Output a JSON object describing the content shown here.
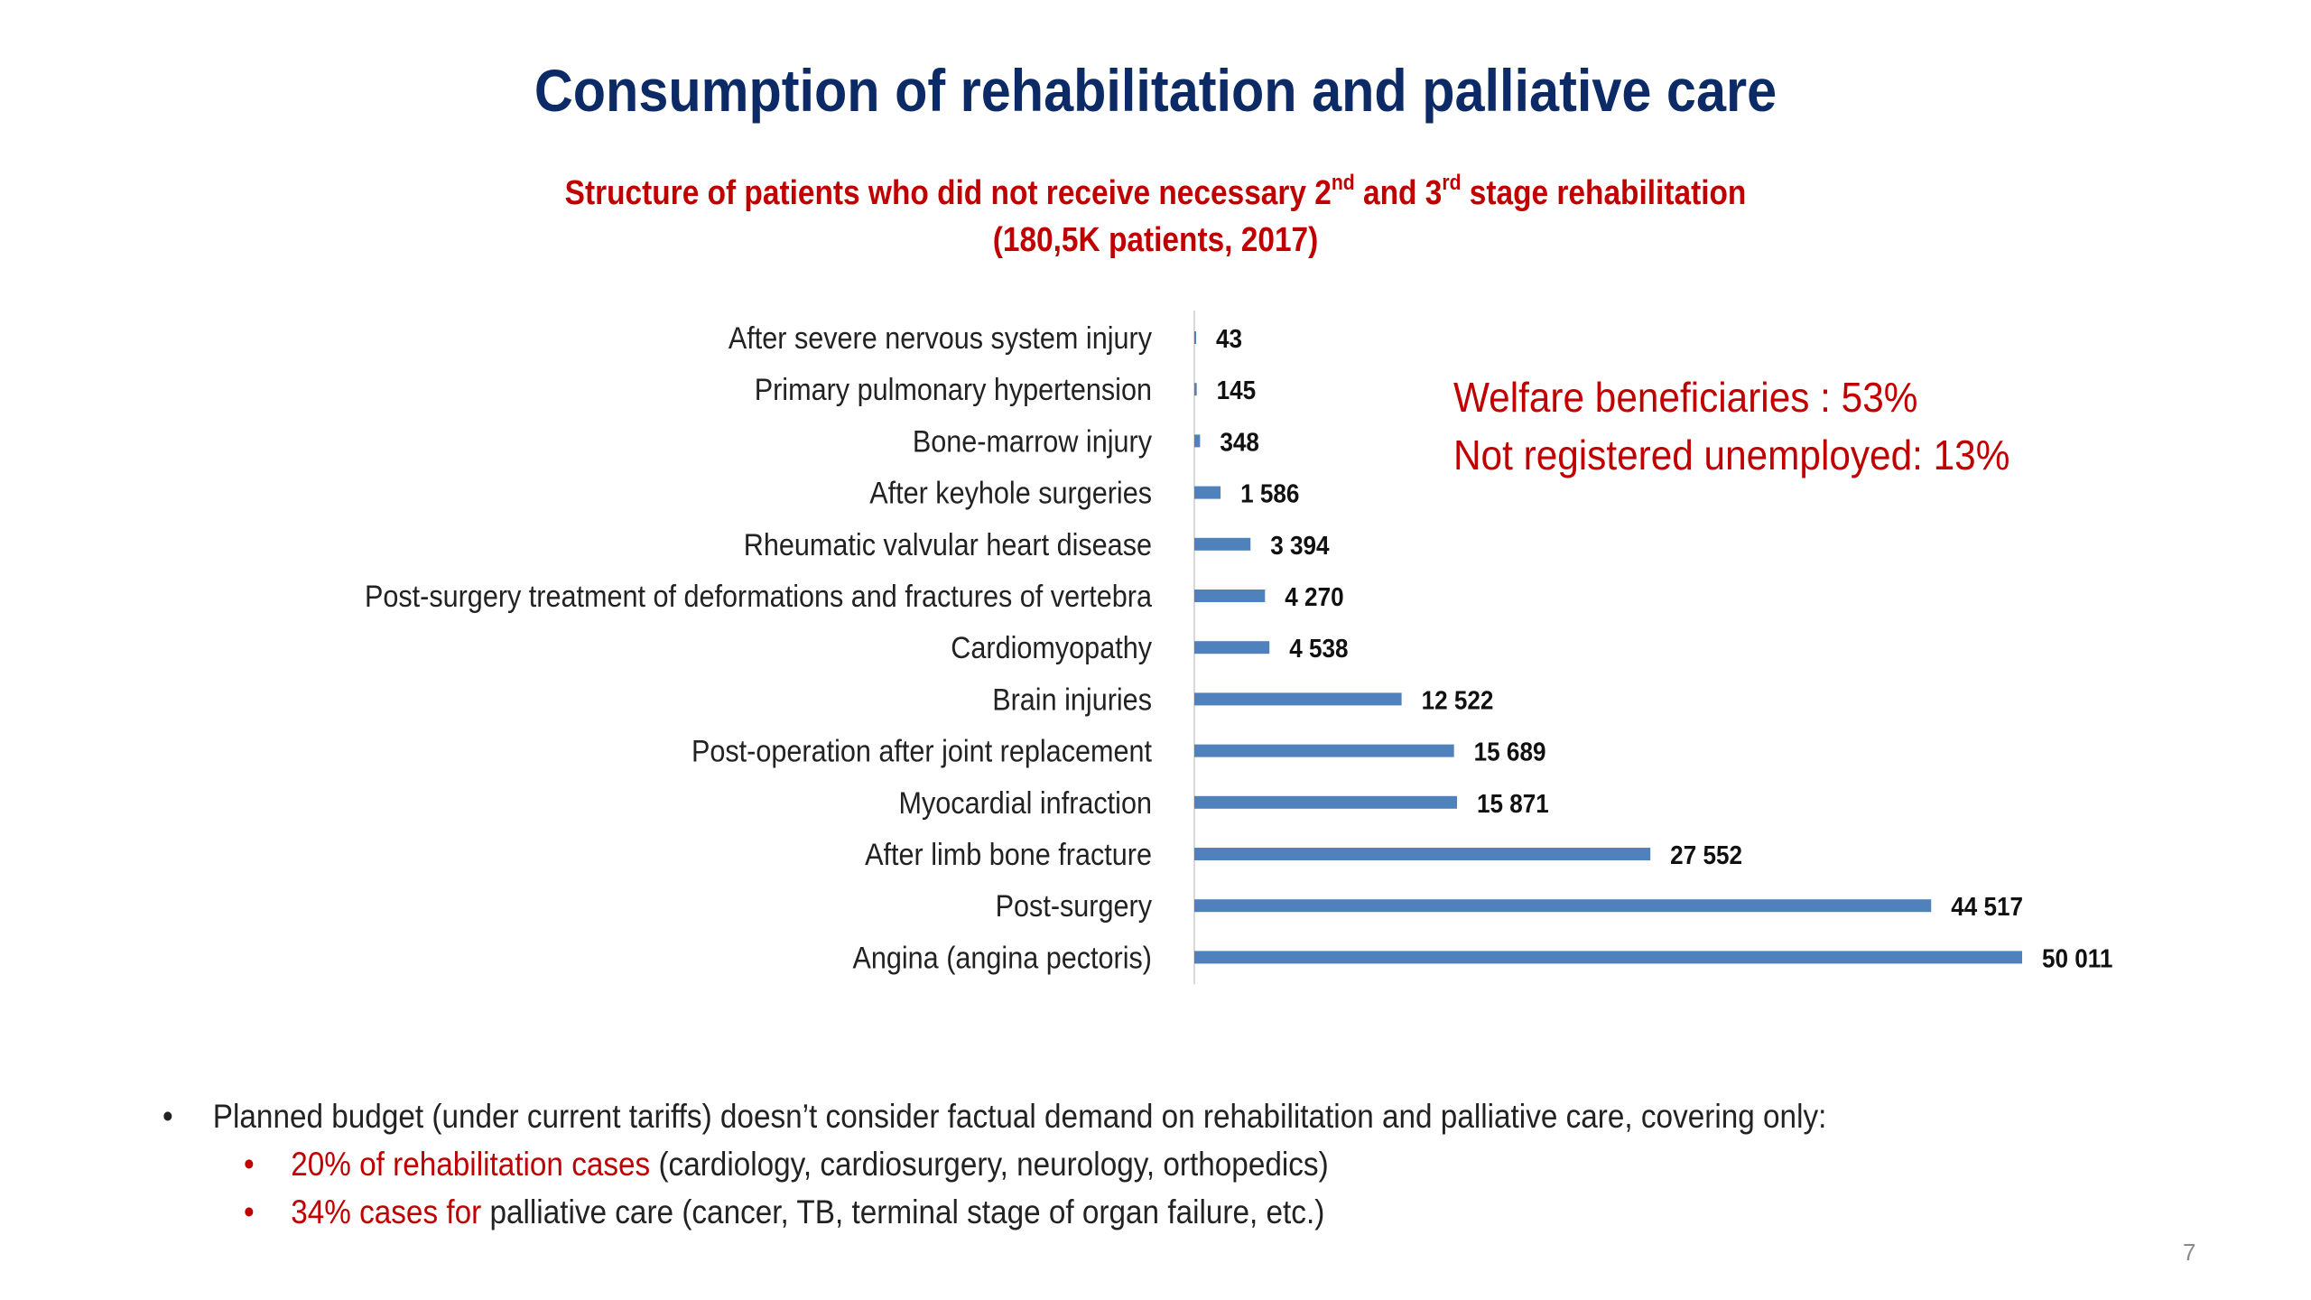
{
  "slide": {
    "title": "Consumption of rehabilitation and palliative care",
    "subtitle_line1_a": "Structure of patients who did not receive necessary 2",
    "subtitle_sup1": "nd",
    "subtitle_line1_b": " and 3",
    "subtitle_sup2": "rd",
    "subtitle_line1_c": " stage rehabilitation",
    "subtitle_line2": "(180,5K patients, 2017)",
    "page_number": "7"
  },
  "callout": {
    "line1": "Welfare beneficiaries :  53%",
    "line2": "Not registered unemployed: 13%"
  },
  "bullets": {
    "main": "Planned budget (under current tariffs) doesn’t consider factual demand on rehabilitation and palliative care, covering only:",
    "sub1_highlight": "20% of rehabilitation cases",
    "sub1_rest": " (cardiology, cardiosurgery, neurology, orthopedics)",
    "sub2_highlight": "34% cases for",
    "sub2_rest": " palliative care (cancer, TB, terminal stage of organ failure, etc.)",
    "main_marker": "•",
    "sub_marker": "•"
  },
  "colors": {
    "bar": "#4f81bd",
    "title": "#0c2a66",
    "accent_red": "#c00000",
    "axis": "#d9d9d9"
  },
  "chart_data": {
    "type": "bar",
    "orientation": "horizontal",
    "categories": [
      "After severe nervous system injury",
      "Primary pulmonary hypertension",
      "Bone-marrow injury",
      "After keyhole surgeries",
      "Rheumatic valvular heart disease",
      "Post-surgery treatment of deformations and fractures of vertebra",
      "Cardiomyopathy",
      "Brain injuries",
      "Post-operation after joint replacement",
      "Myocardial infraction",
      "After limb bone fracture",
      "Post-surgery",
      "Angina (angina pectoris)"
    ],
    "values": [
      43,
      145,
      348,
      1586,
      3394,
      4270,
      4538,
      12522,
      15689,
      15871,
      27552,
      44517,
      50011
    ],
    "value_labels": [
      "43",
      "145",
      "348",
      "1 586",
      "3 394",
      "4 270",
      "4 538",
      "12 522",
      "15 689",
      "15 871",
      "27 552",
      "44 517",
      "50 011"
    ],
    "xlim": [
      0,
      50011
    ],
    "grid": false,
    "legend": "none"
  }
}
